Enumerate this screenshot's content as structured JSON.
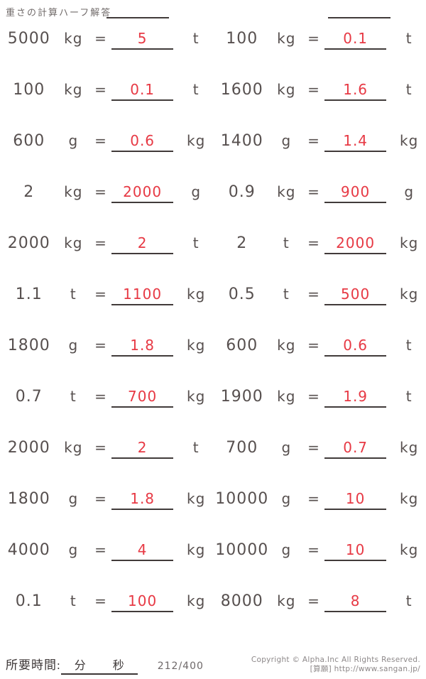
{
  "header": {
    "title": "重さの計算ハーフ解答"
  },
  "ui": {
    "equals": "="
  },
  "colors": {
    "answer_red": "#e73944",
    "ink": "#57504f",
    "line": "#413b3a",
    "muted": "#8d8889"
  },
  "problems": [
    {
      "value": "5000",
      "from": "kg",
      "answer": "5",
      "to": "t"
    },
    {
      "value": "100",
      "from": "kg",
      "answer": "0.1",
      "to": "t"
    },
    {
      "value": "100",
      "from": "kg",
      "answer": "0.1",
      "to": "t"
    },
    {
      "value": "1600",
      "from": "kg",
      "answer": "1.6",
      "to": "t"
    },
    {
      "value": "600",
      "from": "g",
      "answer": "0.6",
      "to": "kg"
    },
    {
      "value": "1400",
      "from": "g",
      "answer": "1.4",
      "to": "kg"
    },
    {
      "value": "2",
      "from": "kg",
      "answer": "2000",
      "to": "g"
    },
    {
      "value": "0.9",
      "from": "kg",
      "answer": "900",
      "to": "g"
    },
    {
      "value": "2000",
      "from": "kg",
      "answer": "2",
      "to": "t"
    },
    {
      "value": "2",
      "from": "t",
      "answer": "2000",
      "to": "kg"
    },
    {
      "value": "1.1",
      "from": "t",
      "answer": "1100",
      "to": "kg"
    },
    {
      "value": "0.5",
      "from": "t",
      "answer": "500",
      "to": "kg"
    },
    {
      "value": "1800",
      "from": "g",
      "answer": "1.8",
      "to": "kg"
    },
    {
      "value": "600",
      "from": "kg",
      "answer": "0.6",
      "to": "t"
    },
    {
      "value": "0.7",
      "from": "t",
      "answer": "700",
      "to": "kg"
    },
    {
      "value": "1900",
      "from": "kg",
      "answer": "1.9",
      "to": "t"
    },
    {
      "value": "2000",
      "from": "kg",
      "answer": "2",
      "to": "t"
    },
    {
      "value": "700",
      "from": "g",
      "answer": "0.7",
      "to": "kg"
    },
    {
      "value": "1800",
      "from": "g",
      "answer": "1.8",
      "to": "kg"
    },
    {
      "value": "10000",
      "from": "g",
      "answer": "10",
      "to": "kg"
    },
    {
      "value": "4000",
      "from": "g",
      "answer": "4",
      "to": "kg"
    },
    {
      "value": "10000",
      "from": "g",
      "answer": "10",
      "to": "kg"
    },
    {
      "value": "0.1",
      "from": "t",
      "answer": "100",
      "to": "kg"
    },
    {
      "value": "8000",
      "from": "kg",
      "answer": "8",
      "to": "t"
    }
  ],
  "footer": {
    "time_label": "所要時間:",
    "minutes_label": "分",
    "seconds_label": "秒",
    "page_number": "212/400",
    "copyright_line1": "Copyright © Alpha.Inc All Rights Reserved.",
    "copyright_line2": "[算願] http://www.sangan.jp/"
  }
}
